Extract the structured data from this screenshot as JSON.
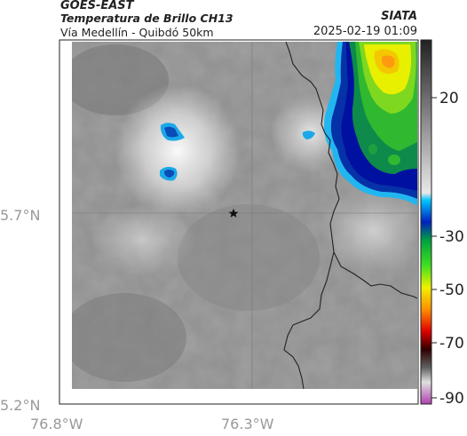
{
  "header": {
    "satellite": "GOES-EAST",
    "product": "Temperatura de Brillo CH13",
    "region": "Vía Medellín - Quibdó 50km",
    "source": "SIATA",
    "datetime": "2025-02-19 01:09"
  },
  "axes": {
    "lat_ticks": [
      "5.7°N",
      "5.2°N"
    ],
    "lon_ticks": [
      "76.8°W",
      "76.3°W"
    ]
  },
  "colorbar": {
    "ticks": [
      "20",
      "-30",
      "-50",
      "-70",
      "-90"
    ],
    "colors": {
      "gray_high": "#3a3a3a",
      "cyan": "#00b4ff",
      "blue": "#0010a0",
      "green": "#10c020",
      "yellow": "#f0f000",
      "orange": "#ff8000",
      "red": "#d00000",
      "black": "#000000",
      "magenta": "#c040c0"
    }
  },
  "markers": {
    "station": "star-icon"
  }
}
